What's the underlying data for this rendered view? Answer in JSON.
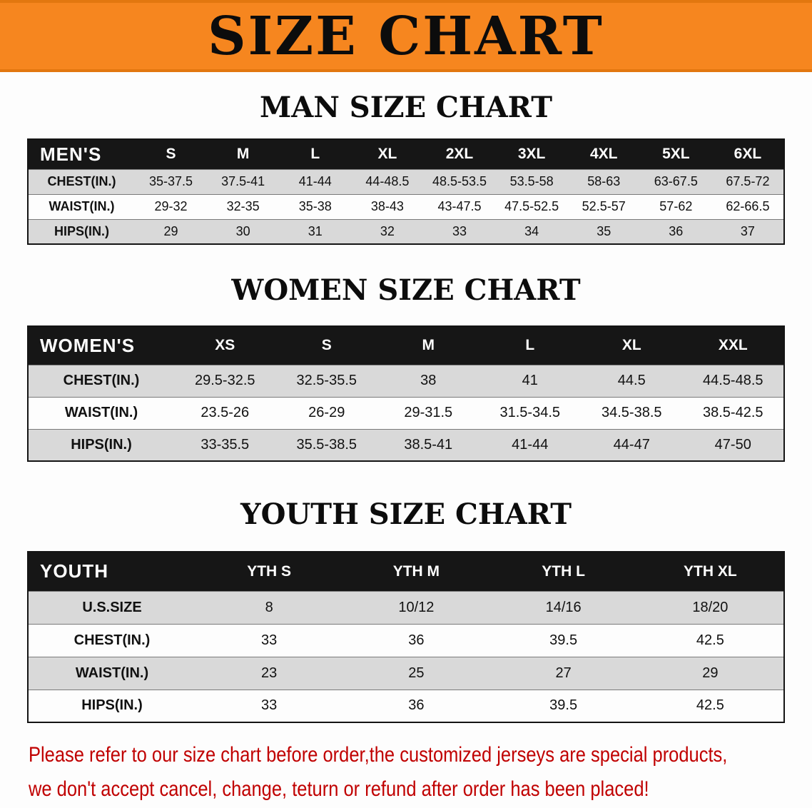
{
  "banner": {
    "title": "SIZE CHART",
    "bg_color": "#f6861f"
  },
  "chart_data": [
    {
      "type": "table",
      "title": "MAN SIZE CHART",
      "header": [
        "MEN'S",
        "S",
        "M",
        "L",
        "XL",
        "2XL",
        "3XL",
        "4XL",
        "5XL",
        "6XL"
      ],
      "rows": [
        [
          "CHEST(IN.)",
          "35-37.5",
          "37.5-41",
          "41-44",
          "44-48.5",
          "48.5-53.5",
          "53.5-58",
          "58-63",
          "63-67.5",
          "67.5-72"
        ],
        [
          "WAIST(IN.)",
          "29-32",
          "32-35",
          "35-38",
          "38-43",
          "43-47.5",
          "47.5-52.5",
          "52.5-57",
          "57-62",
          "62-66.5"
        ],
        [
          "HIPS(IN.)",
          "29",
          "30",
          "31",
          "32",
          "33",
          "34",
          "35",
          "36",
          "37"
        ]
      ]
    },
    {
      "type": "table",
      "title": "WOMEN SIZE CHART",
      "header": [
        "WOMEN'S",
        "XS",
        "S",
        "M",
        "L",
        "XL",
        "XXL"
      ],
      "rows": [
        [
          "CHEST(IN.)",
          "29.5-32.5",
          "32.5-35.5",
          "38",
          "41",
          "44.5",
          "44.5-48.5"
        ],
        [
          "WAIST(IN.)",
          "23.5-26",
          "26-29",
          "29-31.5",
          "31.5-34.5",
          "34.5-38.5",
          "38.5-42.5"
        ],
        [
          "HIPS(IN.)",
          "33-35.5",
          "35.5-38.5",
          "38.5-41",
          "41-44",
          "44-47",
          "47-50"
        ]
      ]
    },
    {
      "type": "table",
      "title": "YOUTH SIZE CHART",
      "header": [
        "YOUTH",
        "YTH S",
        "YTH M",
        "YTH L",
        "YTH XL"
      ],
      "rows": [
        [
          "U.S.SIZE",
          "8",
          "10/12",
          "14/16",
          "18/20"
        ],
        [
          "CHEST(IN.)",
          "33",
          "36",
          "39.5",
          "42.5"
        ],
        [
          "WAIST(IN.)",
          "23",
          "25",
          "27",
          "29"
        ],
        [
          "HIPS(IN.)",
          "33",
          "36",
          "39.5",
          "42.5"
        ]
      ]
    }
  ],
  "disclaimer": {
    "color": "#c00000",
    "lines": [
      "Please refer to our size chart before order,the customized jerseys are special products,",
      "we don't accept cancel, change, teturn or refund after order has been placed!"
    ]
  }
}
